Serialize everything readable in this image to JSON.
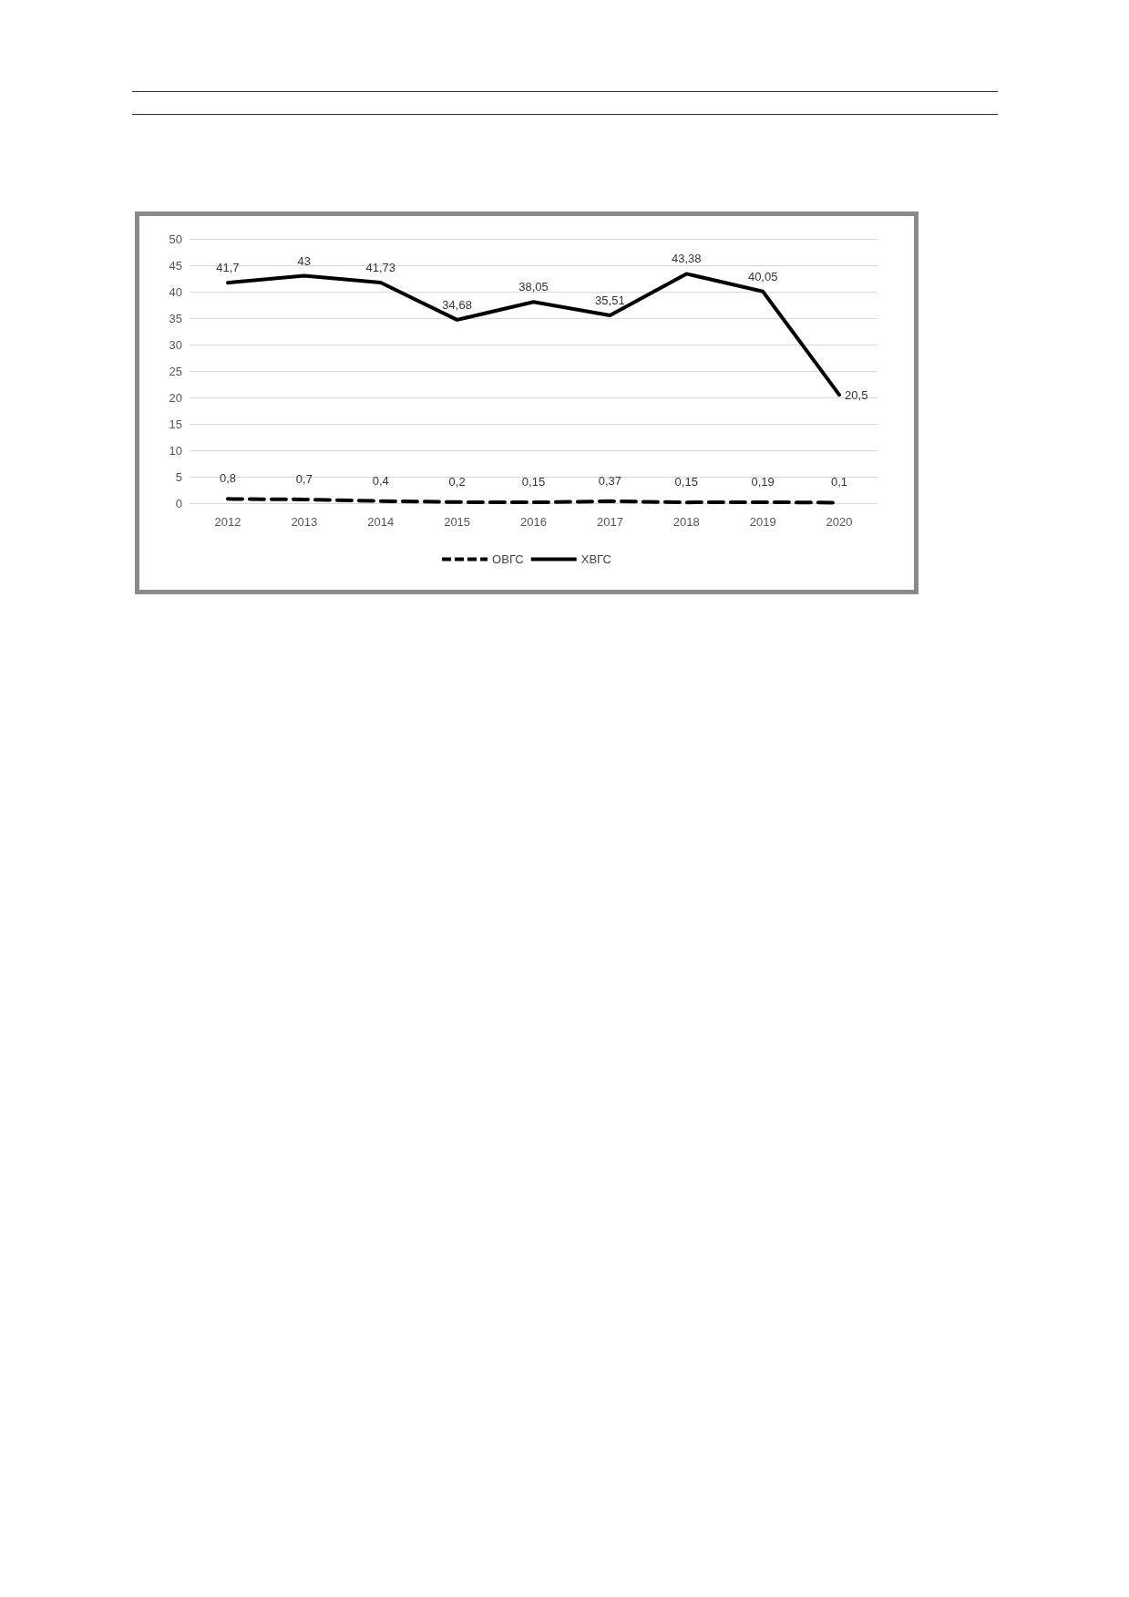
{
  "chart_data": {
    "type": "line",
    "categories": [
      "2012",
      "2013",
      "2014",
      "2015",
      "2016",
      "2017",
      "2018",
      "2019",
      "2020"
    ],
    "series": [
      {
        "name": "ОВГС",
        "color": "#000000",
        "line_style": "dashed",
        "values": [
          0.8,
          0.7,
          0.4,
          0.2,
          0.15,
          0.37,
          0.15,
          0.19,
          0.1
        ],
        "value_labels": [
          "0,8",
          "0,7",
          "0,4",
          "0,2",
          "0,15",
          "0,37",
          "0,15",
          "0,19",
          "0,1"
        ]
      },
      {
        "name": "ХВГС",
        "color": "#000000",
        "line_style": "solid",
        "values": [
          41.7,
          43,
          41.73,
          34.68,
          38.05,
          35.51,
          43.38,
          40.05,
          20.5
        ],
        "value_labels": [
          "41,7",
          "43",
          "41,73",
          "34,68",
          "38,05",
          "35,51",
          "43,38",
          "40,05",
          "20,5"
        ]
      }
    ],
    "ylim": [
      0,
      50
    ],
    "yticks": [
      0,
      5,
      10,
      15,
      20,
      25,
      30,
      35,
      40,
      45,
      50
    ],
    "grid": "y",
    "legend": "bottom",
    "marker": "none"
  }
}
